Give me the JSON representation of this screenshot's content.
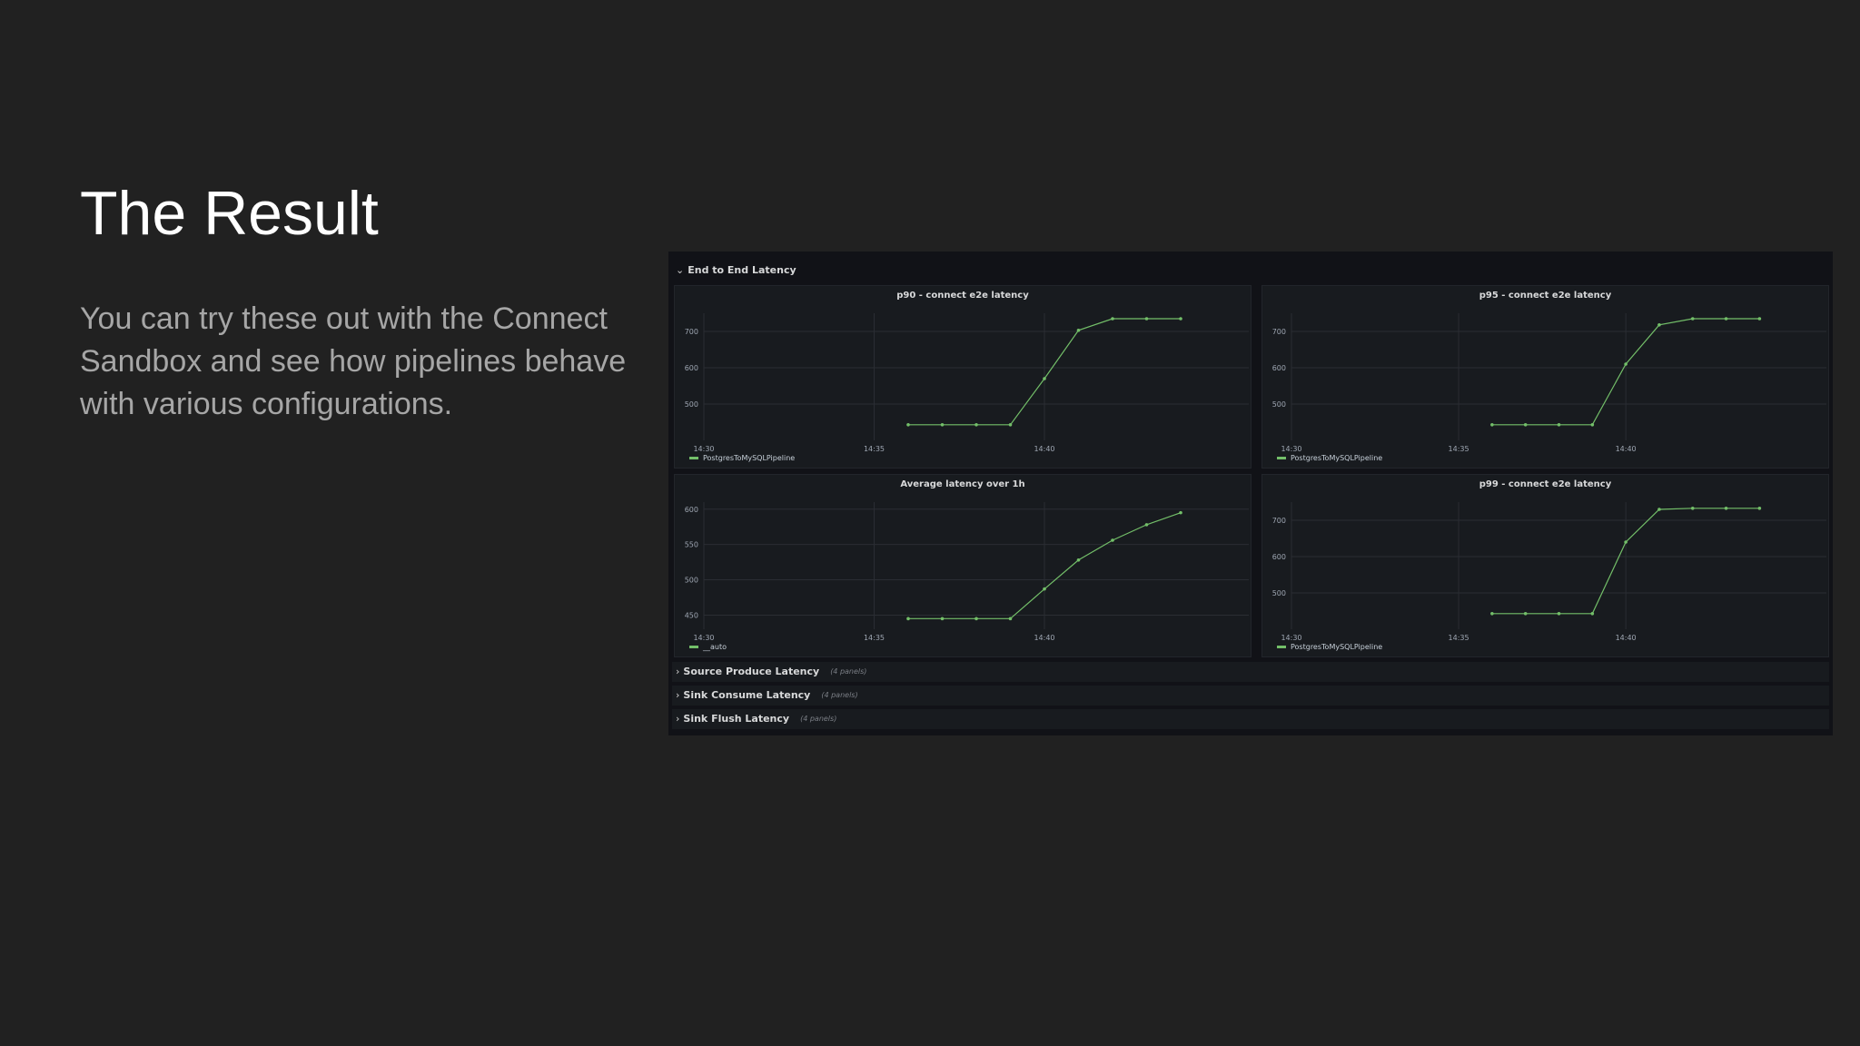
{
  "slide": {
    "title": "The Result",
    "body": "You can try these out with the Connect Sandbox and see how pipelines behave with various configurations."
  },
  "dashboard": {
    "open_row": {
      "label": "End to End Latency",
      "chevron": "chevron-down-icon"
    },
    "collapsed_rows": [
      {
        "label": "Source Produce Latency",
        "count": "(4 panels)",
        "chevron": "chevron-right-icon"
      },
      {
        "label": "Sink Consume Latency",
        "count": "(4 panels)",
        "chevron": "chevron-right-icon"
      },
      {
        "label": "Sink Flush Latency",
        "count": "(4 panels)",
        "chevron": "chevron-right-icon"
      }
    ],
    "colors": {
      "series": "#73bf69",
      "panel_bg": "#181b1f",
      "dashboard_bg": "#111217"
    }
  },
  "chart_data": [
    {
      "type": "line",
      "title": "p90 - connect e2e latency",
      "x_ticks": [
        "14:30",
        "14:35",
        "14:40"
      ],
      "y_ticks": [
        500,
        600,
        700
      ],
      "x": [
        "14:36",
        "14:37",
        "14:38",
        "14:39",
        "14:40",
        "14:41",
        "14:42",
        "14:43",
        "14:44"
      ],
      "series": [
        {
          "name": "PostgresToMySQLPipeline",
          "values": [
            443,
            443,
            443,
            443,
            570,
            703,
            735,
            735,
            735
          ]
        }
      ]
    },
    {
      "type": "line",
      "title": "p95 - connect e2e latency",
      "x_ticks": [
        "14:30",
        "14:35",
        "14:40"
      ],
      "y_ticks": [
        500,
        600,
        700
      ],
      "x": [
        "14:36",
        "14:37",
        "14:38",
        "14:39",
        "14:40",
        "14:41",
        "14:42",
        "14:43",
        "14:44"
      ],
      "series": [
        {
          "name": "PostgresToMySQLPipeline",
          "values": [
            443,
            443,
            443,
            443,
            610,
            718,
            735,
            735,
            735
          ]
        }
      ]
    },
    {
      "type": "line",
      "title": "Average latency over 1h",
      "x_ticks": [
        "14:30",
        "14:35",
        "14:40"
      ],
      "y_ticks": [
        450,
        500,
        550,
        600
      ],
      "x": [
        "14:36",
        "14:37",
        "14:38",
        "14:39",
        "14:40",
        "14:41",
        "14:42",
        "14:43",
        "14:44"
      ],
      "series": [
        {
          "name": "__auto",
          "values": [
            445,
            445,
            445,
            445,
            487,
            528,
            556,
            578,
            595
          ]
        }
      ]
    },
    {
      "type": "line",
      "title": "p99 - connect e2e latency",
      "x_ticks": [
        "14:30",
        "14:35",
        "14:40"
      ],
      "y_ticks": [
        500,
        600,
        700
      ],
      "x": [
        "14:36",
        "14:37",
        "14:38",
        "14:39",
        "14:40",
        "14:41",
        "14:42",
        "14:43",
        "14:44"
      ],
      "series": [
        {
          "name": "PostgresToMySQLPipeline",
          "values": [
            443,
            443,
            443,
            443,
            640,
            730,
            733,
            733,
            733
          ]
        }
      ]
    }
  ]
}
